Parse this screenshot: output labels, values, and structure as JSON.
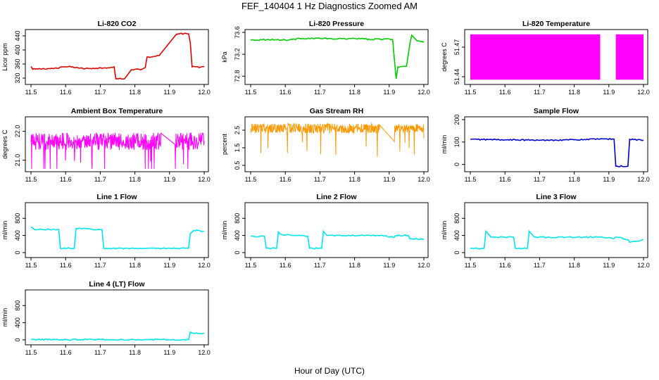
{
  "figure": {
    "title": "FEF_140404  1 Hz Diagnostics Zoomed AM",
    "xlabel": "Hour of Day (UTC)"
  },
  "chart_data": [
    {
      "type": "line",
      "title": "Li-820 CO2",
      "ylabel": "Licor ppm",
      "color": "#dd0000",
      "xlim": [
        11.5,
        12.0
      ],
      "ylim": [
        310,
        450
      ],
      "xticks": [
        "11.5",
        "11.6",
        "11.7",
        "11.8",
        "11.9",
        "12.0"
      ],
      "yticks": [
        "320",
        "360",
        "400",
        "440"
      ],
      "series": [
        {
          "x": [
            11.5,
            11.505,
            11.52,
            11.58,
            11.59,
            11.62,
            11.65,
            11.68,
            11.71,
            11.74,
            11.745,
            11.76,
            11.77,
            11.79,
            11.8,
            11.82,
            11.83,
            11.835,
            11.85,
            11.86,
            11.87,
            11.92,
            11.925,
            11.955,
            11.96,
            11.965,
            12.0
          ],
          "y": [
            353,
            345,
            346,
            348,
            352,
            352,
            347,
            348,
            349,
            352,
            318,
            318,
            318,
            344,
            345,
            345,
            350,
            380,
            380,
            382,
            384,
            445,
            446,
            446,
            420,
            352,
            352
          ]
        }
      ]
    },
    {
      "type": "line",
      "title": "Li-820 Pressure",
      "ylabel": "kPa",
      "color": "#00cc00",
      "xlim": [
        11.5,
        12.0
      ],
      "ylim": [
        72.7,
        73.6
      ],
      "xticks": [
        "11.5",
        "11.6",
        "11.7",
        "11.8",
        "11.9",
        "12.0"
      ],
      "yticks": [
        "72.8",
        "73.2",
        "73.6"
      ],
      "series": [
        {
          "x": [
            11.5,
            11.55,
            11.6,
            11.65,
            11.7,
            11.75,
            11.8,
            11.85,
            11.9,
            11.91,
            11.915,
            11.92,
            11.925,
            11.93,
            11.95,
            11.96,
            11.965,
            11.98,
            12.0
          ],
          "y": [
            73.46,
            73.47,
            73.46,
            73.49,
            73.49,
            73.48,
            73.49,
            73.47,
            73.48,
            73.47,
            73.1,
            72.75,
            72.97,
            72.97,
            72.98,
            73.4,
            73.55,
            73.45,
            73.42
          ]
        }
      ]
    },
    {
      "type": "band",
      "title": "Li-820 Temperature",
      "ylabel": "degrees C",
      "color": "#ff00ff",
      "xlim": [
        11.5,
        12.0
      ],
      "ylim": [
        51.435,
        51.485
      ],
      "xticks": [
        "11.5",
        "11.6",
        "11.7",
        "11.8",
        "11.9",
        "12.0"
      ],
      "yticks": [
        "51.44",
        "51.47"
      ],
      "bands": [
        {
          "x0": 11.5,
          "x1": 11.875,
          "low": 51.437,
          "high": 51.483
        },
        {
          "x0": 11.92,
          "x1": 12.0,
          "low": 51.437,
          "high": 51.483
        }
      ]
    },
    {
      "type": "noise",
      "title": "Ambient Box Temperature",
      "ylabel": "degrees C",
      "color": "#ff00ff",
      "xlim": [
        11.5,
        12.0
      ],
      "ylim": [
        20.7,
        22.4
      ],
      "xticks": [
        "11.5",
        "11.6",
        "11.7",
        "11.8",
        "11.9",
        "12.0"
      ],
      "yticks": [
        "21.0",
        "22.0"
      ],
      "segments": [
        {
          "x0": 11.5,
          "x1": 11.875,
          "mean": 21.65,
          "amp": 0.3
        },
        {
          "x0": 11.915,
          "x1": 12.0,
          "mean": 21.65,
          "amp": 0.3
        }
      ]
    },
    {
      "type": "noise",
      "title": "Gas Stream RH",
      "ylabel": "percent",
      "color": "#ff9900",
      "xlim": [
        11.5,
        12.0
      ],
      "ylim": [
        0.3,
        3.1
      ],
      "xticks": [
        "11.5",
        "11.6",
        "11.7",
        "11.8",
        "11.9",
        "12.0"
      ],
      "yticks": [
        "0.5",
        "1.5",
        "2.5"
      ],
      "segments": [
        {
          "x0": 11.5,
          "x1": 11.875,
          "mean": 2.6,
          "amp": 0.28
        },
        {
          "x0": 11.915,
          "x1": 12.0,
          "mean": 2.6,
          "amp": 0.25
        }
      ]
    },
    {
      "type": "line",
      "title": "Sample Flow",
      "ylabel": "ml/min",
      "color": "#0000cc",
      "xlim": [
        11.5,
        12.0
      ],
      "ylim": [
        -20,
        200
      ],
      "xticks": [
        "11.5",
        "11.6",
        "11.7",
        "11.8",
        "11.9",
        "12.0"
      ],
      "yticks": [
        "0",
        "100",
        "200"
      ],
      "series": [
        {
          "x": [
            11.5,
            11.6,
            11.7,
            11.8,
            11.87,
            11.915,
            11.92,
            11.955,
            11.96,
            12.0
          ],
          "y": [
            112,
            110,
            108,
            110,
            113,
            113,
            -8,
            -8,
            112,
            108
          ]
        }
      ]
    },
    {
      "type": "line",
      "title": "Line 1 Flow",
      "ylabel": "ml/min",
      "color": "#00e5ee",
      "xlim": [
        11.5,
        12.0
      ],
      "ylim": [
        -50,
        1100
      ],
      "xticks": [
        "11.5",
        "11.6",
        "11.7",
        "11.8",
        "11.9",
        "12.0"
      ],
      "yticks": [
        "0",
        "400",
        "800"
      ],
      "series": [
        {
          "x": [
            11.5,
            11.51,
            11.58,
            11.585,
            11.625,
            11.63,
            11.705,
            11.71,
            11.955,
            11.96,
            11.97,
            12.0
          ],
          "y": [
            600,
            540,
            540,
            100,
            100,
            560,
            540,
            100,
            100,
            450,
            520,
            500
          ]
        }
      ]
    },
    {
      "type": "line",
      "title": "Line 2 Flow",
      "ylabel": "ml/min",
      "color": "#00e5ee",
      "xlim": [
        11.5,
        12.0
      ],
      "ylim": [
        -50,
        1100
      ],
      "xticks": [
        "11.5",
        "11.6",
        "11.7",
        "11.8",
        "11.9",
        "12.0"
      ],
      "yticks": [
        "0",
        "400",
        "800"
      ],
      "series": [
        {
          "x": [
            11.5,
            11.54,
            11.545,
            11.575,
            11.58,
            11.59,
            11.665,
            11.67,
            11.705,
            11.71,
            11.72,
            11.875,
            11.915,
            11.92,
            11.955,
            11.96,
            12.0
          ],
          "y": [
            380,
            380,
            100,
            100,
            480,
            420,
            380,
            100,
            100,
            500,
            400,
            400,
            360,
            400,
            400,
            320,
            320
          ]
        }
      ]
    },
    {
      "type": "line",
      "title": "Line 3 Flow",
      "ylabel": "ml/min",
      "color": "#00e5ee",
      "xlim": [
        11.5,
        12.0
      ],
      "ylim": [
        -50,
        1100
      ],
      "xticks": [
        "11.5",
        "11.6",
        "11.7",
        "11.8",
        "11.9",
        "12.0"
      ],
      "yticks": [
        "0",
        "400",
        "800"
      ],
      "series": [
        {
          "x": [
            11.5,
            11.54,
            11.545,
            11.56,
            11.625,
            11.63,
            11.665,
            11.67,
            11.685,
            11.875,
            11.915,
            11.92,
            11.955,
            11.96,
            12.0
          ],
          "y": [
            100,
            100,
            500,
            360,
            360,
            100,
            100,
            500,
            360,
            360,
            330,
            370,
            300,
            240,
            300
          ]
        }
      ]
    },
    {
      "type": "line",
      "title": "Line 4 (LT) Flow",
      "ylabel": "ml/min",
      "color": "#00e5ee",
      "xlim": [
        11.5,
        12.0
      ],
      "ylim": [
        -50,
        1100
      ],
      "xticks": [
        "11.5",
        "11.6",
        "11.7",
        "11.8",
        "11.9",
        "12.0"
      ],
      "yticks": [
        "0",
        "400",
        "800"
      ],
      "series": [
        {
          "x": [
            11.5,
            11.955,
            11.96,
            11.97,
            12.0
          ],
          "y": [
            5,
            5,
            180,
            150,
            150
          ]
        }
      ]
    }
  ]
}
